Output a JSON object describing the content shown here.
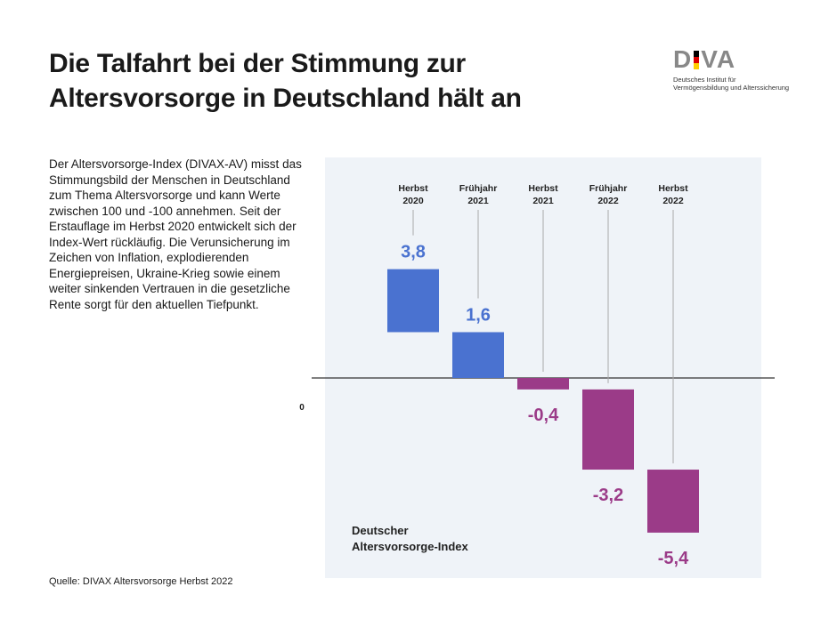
{
  "title_lines": [
    "Die Talfahrt bei der Stimmung zur",
    "Altersvorsorge in Deutschland hält an"
  ],
  "logo": {
    "text": "DIVA",
    "subtitle_lines": [
      "Deutsches Institut für",
      "Vermögensbildung und Alterssicherung"
    ],
    "flag_colors": [
      "#000000",
      "#dd0000",
      "#ffce00"
    ]
  },
  "description": "Der Altersvorsorge-Index (DIVAX-AV) misst das Stimmungsbild der Menschen in Deutschland zum Thema Altersvorsorge und kann Werte zwischen 100 und -100 annehmen. Seit der Erstauflage im Herbst 2020 entwickelt sich der Index-Wert rückläufig. Die Verunsicherung im Zeichen von Inflation, explodierenden Energiepreisen, Ukraine-Krieg sowie einem weiter sinkenden Vertrauen in die gesetzliche Rente sorgt für den aktuellen Tiefpunkt.",
  "source": "Quelle: DIVAX Altersvorsorge Herbst 2022",
  "chart_data": {
    "type": "bar",
    "categories": [
      [
        "Herbst",
        "2020"
      ],
      [
        "Frühjahr",
        "2021"
      ],
      [
        "Herbst",
        "2021"
      ],
      [
        "Frühjahr",
        "2022"
      ],
      [
        "Herbst",
        "2022"
      ]
    ],
    "values": [
      3.8,
      1.6,
      -0.4,
      -3.2,
      -5.4
    ],
    "value_labels": [
      "3,8",
      "1,6",
      "-0,4",
      "-3,2",
      "-5,4"
    ],
    "zero_label": "0",
    "series_label_lines": [
      "Deutscher",
      "Altersvorsorge-Index"
    ],
    "colors": {
      "positive": "#4a72d0",
      "negative": "#9b3b88",
      "panel": "#eff3f8"
    },
    "grid": false
  }
}
